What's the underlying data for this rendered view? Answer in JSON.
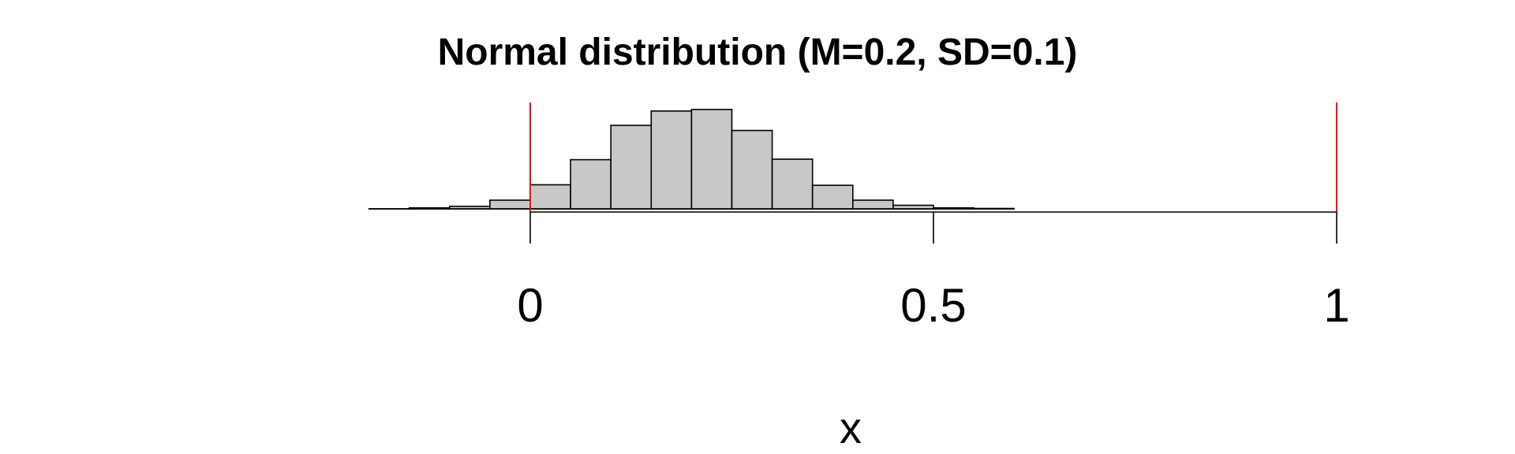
{
  "chart_data": {
    "type": "bar",
    "title": "Normal distribution (M=0.2, SD=0.1)",
    "xlabel": "x",
    "ylabel": "",
    "xlim": [
      -0.2,
      1.0
    ],
    "x_ticks": [
      {
        "value": 0,
        "label": "0"
      },
      {
        "value": 0.5,
        "label": "0.5"
      },
      {
        "value": 1,
        "label": "1"
      }
    ],
    "bin_width": 0.05,
    "bins": [
      {
        "start": -0.2,
        "end": -0.15,
        "count": 0.001
      },
      {
        "start": -0.15,
        "end": -0.1,
        "count": 0.01
      },
      {
        "start": -0.1,
        "end": -0.05,
        "count": 0.025
      },
      {
        "start": -0.05,
        "end": 0.0,
        "count": 0.085
      },
      {
        "start": 0.0,
        "end": 0.05,
        "count": 0.235
      },
      {
        "start": 0.05,
        "end": 0.1,
        "count": 0.48
      },
      {
        "start": 0.1,
        "end": 0.15,
        "count": 0.815
      },
      {
        "start": 0.15,
        "end": 0.2,
        "count": 0.955
      },
      {
        "start": 0.2,
        "end": 0.25,
        "count": 0.97
      },
      {
        "start": 0.25,
        "end": 0.3,
        "count": 0.765
      },
      {
        "start": 0.3,
        "end": 0.35,
        "count": 0.485
      },
      {
        "start": 0.35,
        "end": 0.4,
        "count": 0.23
      },
      {
        "start": 0.4,
        "end": 0.45,
        "count": 0.085
      },
      {
        "start": 0.45,
        "end": 0.5,
        "count": 0.035
      },
      {
        "start": 0.5,
        "end": 0.55,
        "count": 0.01
      },
      {
        "start": 0.55,
        "end": 0.6,
        "count": 0.004
      }
    ],
    "reference_lines": [
      {
        "x": 0,
        "color": "#ff0000"
      },
      {
        "x": 1,
        "color": "#ff0000"
      }
    ],
    "grid": false,
    "colors": {
      "bar_fill": "#c8c8c8",
      "bar_stroke": "#000000",
      "axis": "#000000",
      "reference": "#ff0000"
    }
  }
}
